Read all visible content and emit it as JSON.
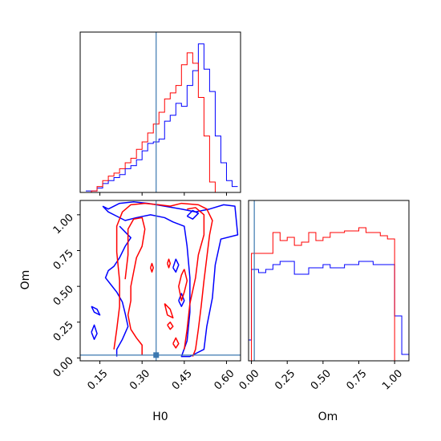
{
  "chart_data": {
    "type": "corner",
    "parameters": [
      "H0",
      "Om"
    ],
    "xlabel_h0": "H0",
    "xlabel_om": "Om",
    "ylabel_om": "Om",
    "truth": {
      "H0": 0.35,
      "Om": 0.02
    },
    "truth_color": "#3b78b0",
    "series_colors": {
      "blue": "#0000ff",
      "red": "#ff0000"
    },
    "h0_range": [
      0.08,
      0.65
    ],
    "om_range": [
      -0.02,
      1.1
    ],
    "h0_ticks": [
      "0.15",
      "0.30",
      "0.45",
      "0.60"
    ],
    "h0_tick_values": [
      0.15,
      0.3,
      0.45,
      0.6
    ],
    "om_ticks": [
      "0.00",
      "0.25",
      "0.50",
      "0.75",
      "1.00"
    ],
    "om_tick_values": [
      0.0,
      0.25,
      0.5,
      0.75,
      1.0
    ],
    "hist_h0": {
      "bin_edges": [
        0.1,
        0.12,
        0.14,
        0.16,
        0.18,
        0.2,
        0.22,
        0.24,
        0.26,
        0.28,
        0.3,
        0.32,
        0.34,
        0.36,
        0.38,
        0.4,
        0.42,
        0.44,
        0.46,
        0.48,
        0.5,
        0.52,
        0.54,
        0.56,
        0.58,
        0.6,
        0.62,
        0.64
      ],
      "series": [
        {
          "color": "blue",
          "counts": [
            1,
            1,
            3,
            6,
            8,
            10,
            12,
            16,
            18,
            22,
            28,
            33,
            34,
            36,
            48,
            52,
            60,
            58,
            72,
            82,
            100,
            83,
            68,
            38,
            20,
            8,
            4
          ]
        },
        {
          "color": "red",
          "counts": [
            0,
            1,
            4,
            8,
            11,
            13,
            16,
            20,
            23,
            29,
            34,
            40,
            46,
            54,
            63,
            67,
            72,
            86,
            94,
            87,
            64,
            38,
            7,
            0,
            0,
            0,
            0
          ]
        }
      ]
    },
    "hist_om": {
      "bin_edges": [
        -0.05,
        0.0,
        0.05,
        0.1,
        0.15,
        0.2,
        0.25,
        0.3,
        0.35,
        0.4,
        0.45,
        0.5,
        0.55,
        0.6,
        0.65,
        0.7,
        0.75,
        0.8,
        0.85,
        0.9,
        0.95,
        1.0,
        1.05,
        1.1
      ],
      "series": [
        {
          "color": "blue",
          "counts": [
            13,
            57,
            55,
            57,
            60,
            62,
            62,
            54,
            54,
            58,
            58,
            60,
            58,
            58,
            60,
            60,
            62,
            62,
            60,
            60,
            60,
            28,
            4
          ]
        },
        {
          "color": "red",
          "counts": [
            0,
            67,
            67,
            67,
            80,
            75,
            77,
            72,
            74,
            80,
            75,
            77,
            80,
            80,
            81,
            81,
            83,
            80,
            80,
            78,
            76,
            0,
            0
          ]
        }
      ]
    },
    "contours": {
      "blue": [
        [
          [
            0.16,
            1.06
          ],
          [
            0.18,
            1.04
          ],
          [
            0.22,
            1.08
          ],
          [
            0.27,
            1.09
          ],
          [
            0.32,
            1.08
          ],
          [
            0.38,
            1.06
          ],
          [
            0.44,
            1.04
          ],
          [
            0.49,
            1.02
          ],
          [
            0.54,
            1.04
          ],
          [
            0.59,
            1.07
          ],
          [
            0.63,
            1.06
          ],
          [
            0.64,
            0.86
          ],
          [
            0.58,
            0.83
          ],
          [
            0.56,
            0.65
          ],
          [
            0.55,
            0.42
          ],
          [
            0.53,
            0.22
          ],
          [
            0.52,
            0.06
          ],
          [
            0.47,
            0.01
          ],
          [
            0.44,
            0.01
          ],
          [
            0.46,
            0.12
          ],
          [
            0.47,
            0.32
          ],
          [
            0.47,
            0.56
          ],
          [
            0.46,
            0.78
          ],
          [
            0.45,
            0.92
          ],
          [
            0.41,
            0.95
          ],
          [
            0.38,
            0.98
          ],
          [
            0.33,
            1.0
          ],
          [
            0.28,
            0.98
          ],
          [
            0.24,
            0.96
          ],
          [
            0.21,
            0.99
          ],
          [
            0.18,
            1.02
          ],
          [
            0.16,
            1.06
          ]
        ],
        [
          [
            0.22,
            0.92
          ],
          [
            0.24,
            0.88
          ],
          [
            0.26,
            0.84
          ],
          [
            0.24,
            0.78
          ],
          [
            0.22,
            0.7
          ],
          [
            0.2,
            0.64
          ],
          [
            0.18,
            0.61
          ],
          [
            0.17,
            0.56
          ],
          [
            0.19,
            0.51
          ],
          [
            0.21,
            0.46
          ],
          [
            0.23,
            0.39
          ],
          [
            0.24,
            0.31
          ],
          [
            0.25,
            0.22
          ],
          [
            0.23,
            0.13
          ],
          [
            0.21,
            0.06
          ],
          [
            0.21,
            0.01
          ]
        ],
        [
          [
            0.12,
            0.36
          ],
          [
            0.14,
            0.34
          ],
          [
            0.15,
            0.3
          ],
          [
            0.13,
            0.32
          ],
          [
            0.12,
            0.36
          ]
        ],
        [
          [
            0.12,
            0.18
          ],
          [
            0.13,
            0.23
          ],
          [
            0.14,
            0.17
          ],
          [
            0.13,
            0.13
          ],
          [
            0.12,
            0.18
          ]
        ],
        [
          [
            0.46,
            0.99
          ],
          [
            0.48,
            1.03
          ],
          [
            0.5,
            1.01
          ],
          [
            0.48,
            0.97
          ],
          [
            0.46,
            0.99
          ]
        ],
        [
          [
            0.41,
            0.63
          ],
          [
            0.42,
            0.69
          ],
          [
            0.43,
            0.65
          ],
          [
            0.42,
            0.6
          ],
          [
            0.41,
            0.63
          ]
        ],
        [
          [
            0.43,
            0.4
          ],
          [
            0.44,
            0.45
          ],
          [
            0.45,
            0.4
          ],
          [
            0.44,
            0.36
          ],
          [
            0.43,
            0.4
          ]
        ]
      ],
      "red": [
        [
          [
            0.2,
            0.06
          ],
          [
            0.21,
            0.2
          ],
          [
            0.22,
            0.36
          ],
          [
            0.22,
            0.54
          ],
          [
            0.21,
            0.74
          ],
          [
            0.21,
            0.92
          ],
          [
            0.23,
            1.02
          ],
          [
            0.26,
            1.07
          ],
          [
            0.31,
            1.08
          ],
          [
            0.36,
            1.07
          ],
          [
            0.4,
            1.06
          ],
          [
            0.44,
            1.08
          ],
          [
            0.5,
            1.07
          ],
          [
            0.53,
            1.04
          ],
          [
            0.55,
            0.96
          ],
          [
            0.54,
            0.86
          ],
          [
            0.53,
            0.7
          ],
          [
            0.52,
            0.54
          ],
          [
            0.51,
            0.36
          ],
          [
            0.5,
            0.2
          ],
          [
            0.49,
            0.06
          ],
          [
            0.48,
            0.01
          ]
        ],
        [
          [
            0.24,
            0.55
          ],
          [
            0.25,
            0.72
          ],
          [
            0.25,
            0.9
          ],
          [
            0.27,
            0.97
          ],
          [
            0.3,
            0.98
          ],
          [
            0.31,
            0.9
          ],
          [
            0.3,
            0.78
          ],
          [
            0.28,
            0.7
          ],
          [
            0.27,
            0.6
          ],
          [
            0.26,
            0.5
          ],
          [
            0.26,
            0.4
          ],
          [
            0.25,
            0.3
          ],
          [
            0.26,
            0.2
          ],
          [
            0.28,
            0.14
          ],
          [
            0.3,
            0.09
          ],
          [
            0.3,
            0.02
          ]
        ],
        [
          [
            0.46,
            1.04
          ],
          [
            0.49,
            1.05
          ],
          [
            0.52,
            1.0
          ],
          [
            0.52,
            0.86
          ],
          [
            0.5,
            0.72
          ],
          [
            0.49,
            0.56
          ],
          [
            0.47,
            0.38
          ],
          [
            0.46,
            0.2
          ],
          [
            0.45,
            0.06
          ]
        ],
        [
          [
            0.45,
            0.62
          ],
          [
            0.46,
            0.54
          ],
          [
            0.45,
            0.46
          ],
          [
            0.44,
            0.4
          ],
          [
            0.43,
            0.5
          ],
          [
            0.44,
            0.58
          ],
          [
            0.45,
            0.62
          ]
        ],
        [
          [
            0.38,
            0.38
          ],
          [
            0.4,
            0.34
          ],
          [
            0.41,
            0.28
          ],
          [
            0.39,
            0.3
          ],
          [
            0.38,
            0.38
          ]
        ],
        [
          [
            0.41,
            0.1
          ],
          [
            0.42,
            0.14
          ],
          [
            0.43,
            0.1
          ],
          [
            0.42,
            0.07
          ],
          [
            0.41,
            0.1
          ]
        ],
        [
          [
            0.39,
            0.23
          ],
          [
            0.4,
            0.25
          ],
          [
            0.41,
            0.22
          ],
          [
            0.4,
            0.2
          ],
          [
            0.39,
            0.23
          ]
        ],
        [
          [
            0.33,
            0.63
          ],
          [
            0.335,
            0.66
          ],
          [
            0.34,
            0.63
          ],
          [
            0.335,
            0.6
          ],
          [
            0.33,
            0.63
          ]
        ],
        [
          [
            0.39,
            0.66
          ],
          [
            0.395,
            0.69
          ],
          [
            0.4,
            0.66
          ],
          [
            0.395,
            0.63
          ],
          [
            0.39,
            0.66
          ]
        ]
      ]
    }
  }
}
